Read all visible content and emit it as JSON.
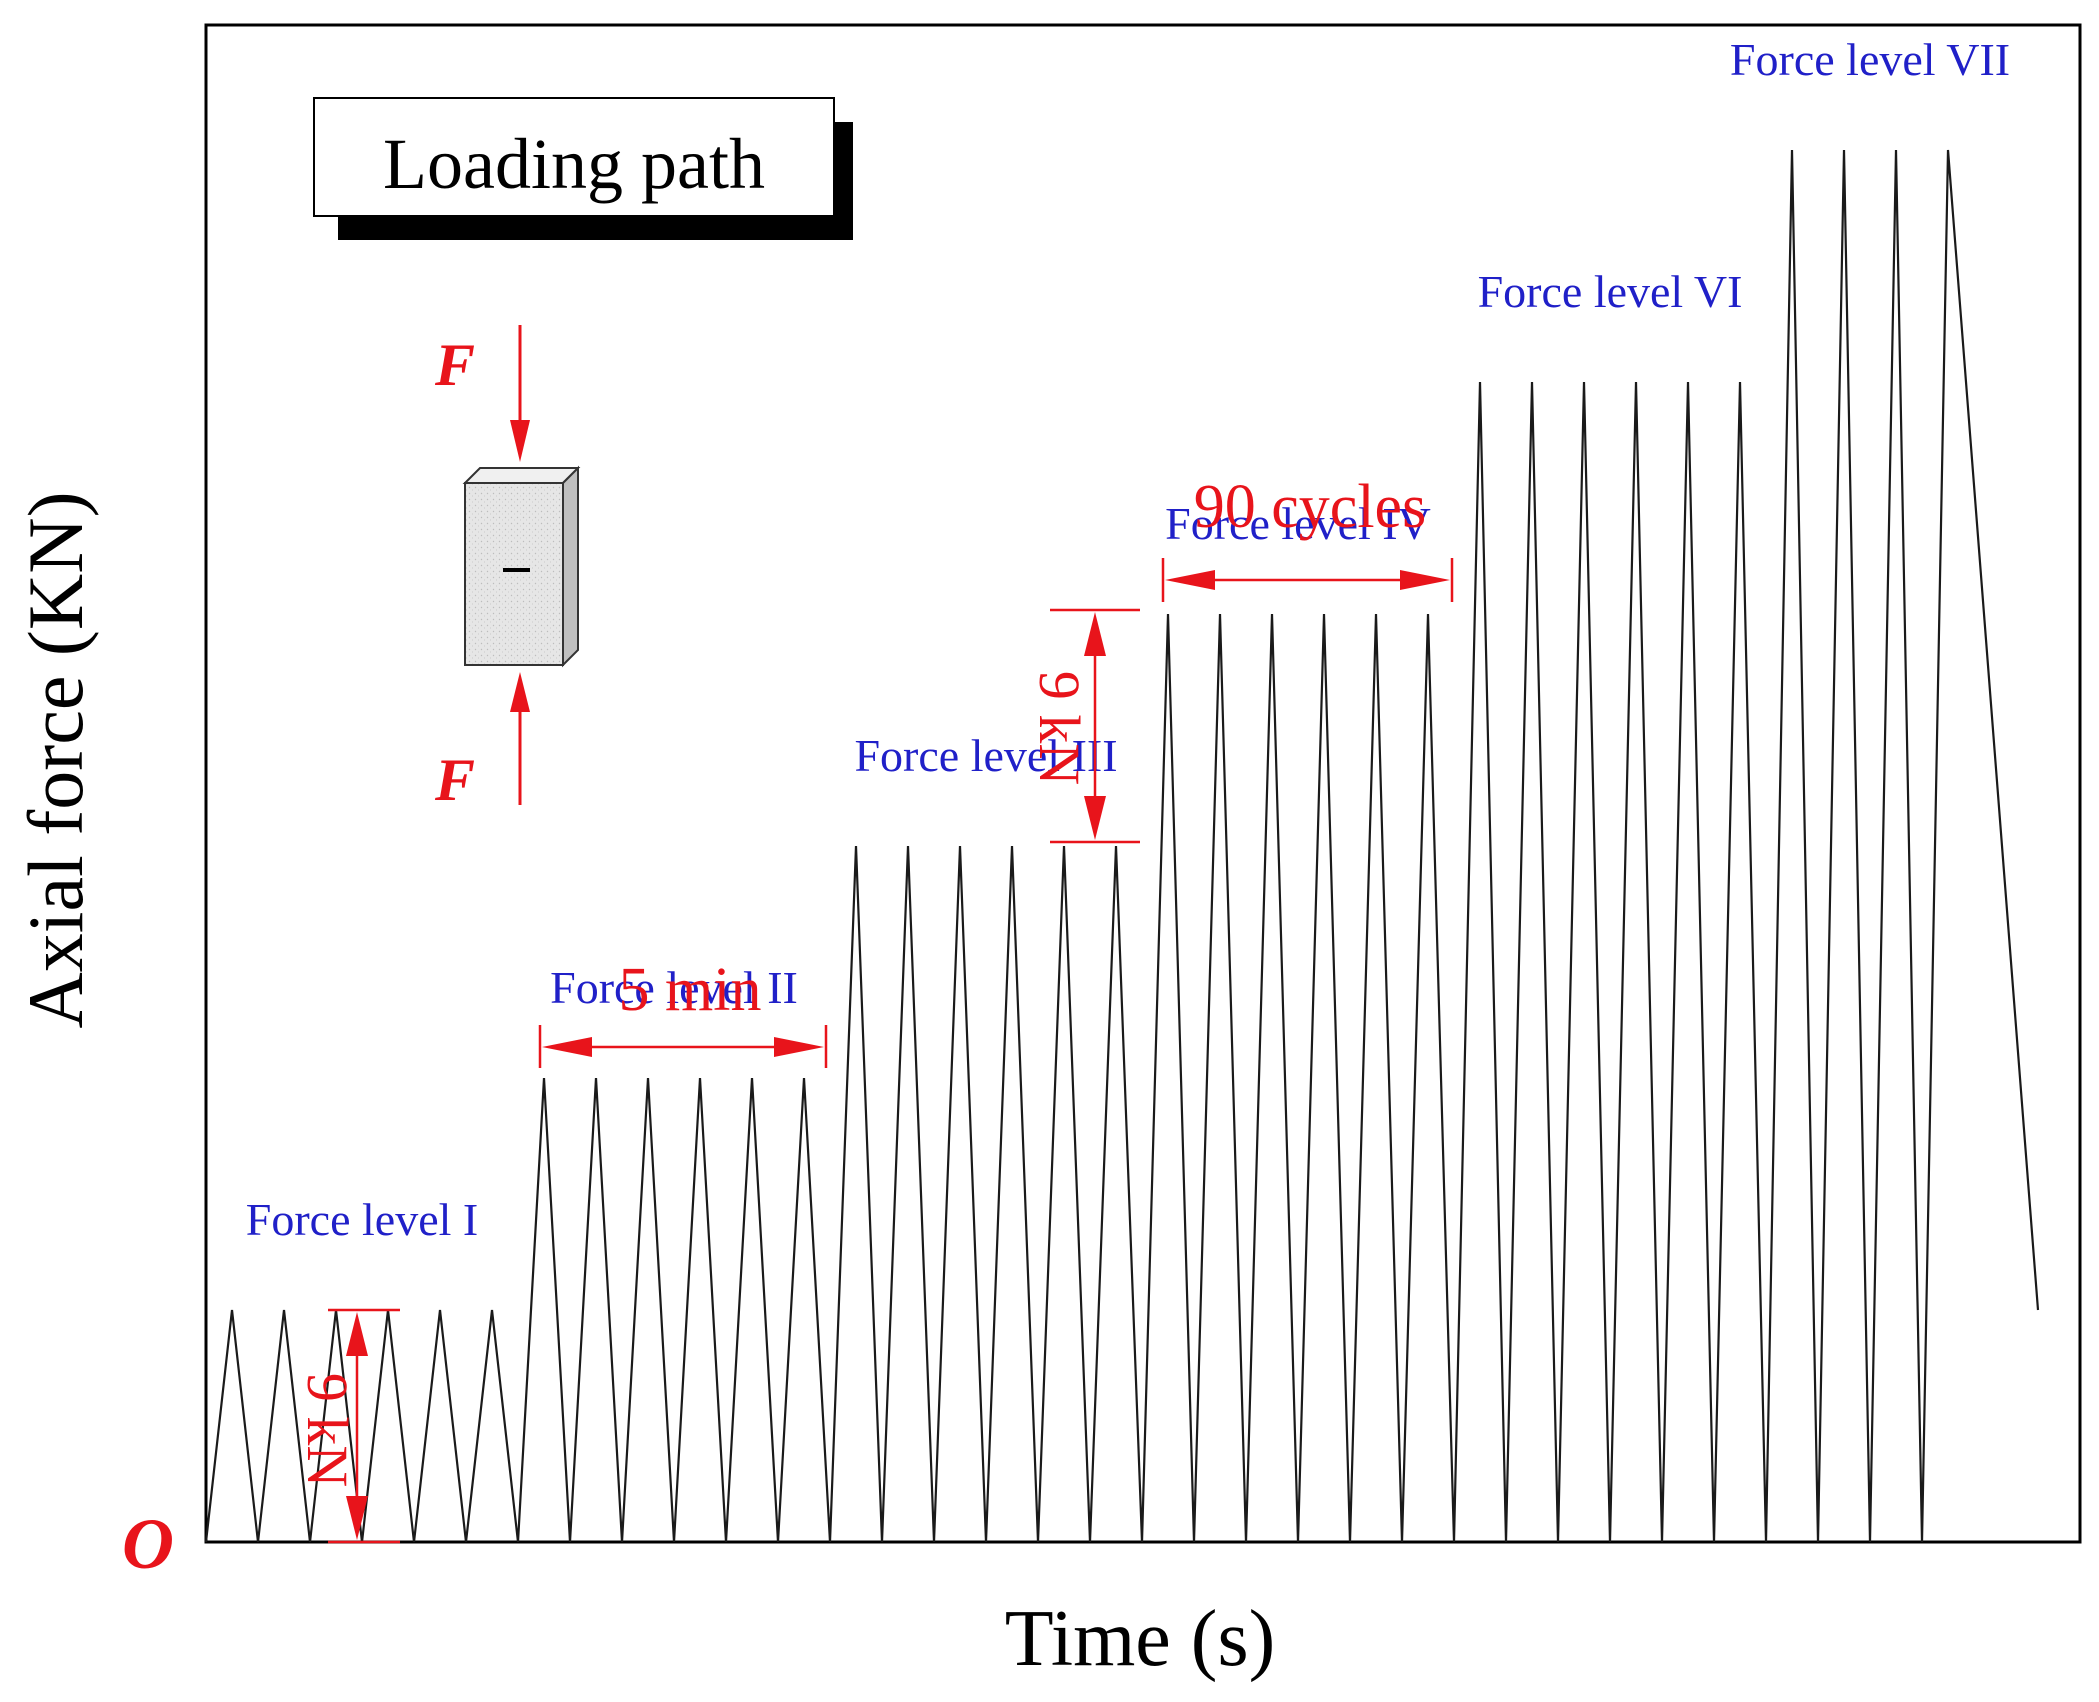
{
  "chart_data": {
    "type": "line",
    "xlabel": "Time (s)",
    "ylabel": "Axial force (KN)",
    "origin_label": "O",
    "inset_title": "Loading path",
    "force_symbol": "F",
    "ylim": [
      0,
      64
    ],
    "xlim": [
      0,
      36
    ],
    "grid": false,
    "legend": "none",
    "levels": [
      {
        "label": "Force level I",
        "peak": 9,
        "cycles": 6
      },
      {
        "label": "Force level II",
        "peak": 18,
        "cycles": 6
      },
      {
        "label": "Force level III",
        "peak": 27,
        "cycles": 6
      },
      {
        "label": "Force level IV",
        "peak": 36,
        "cycles": 6
      },
      {
        "label": "Force level VI",
        "peak": 45,
        "cycles": 6
      },
      {
        "label": "Force level VII",
        "peak": 54,
        "cycles": 4
      }
    ],
    "final_unload_to": 9,
    "annotations": {
      "step_first": "9 kN",
      "step_middle": "9 kN",
      "period": "5 min",
      "cycles": "90 cycles"
    },
    "colors": {
      "line": "#1a1a1a",
      "annotation": "#e8141b",
      "level_label": "#2020c8",
      "axes": "#000000"
    }
  }
}
